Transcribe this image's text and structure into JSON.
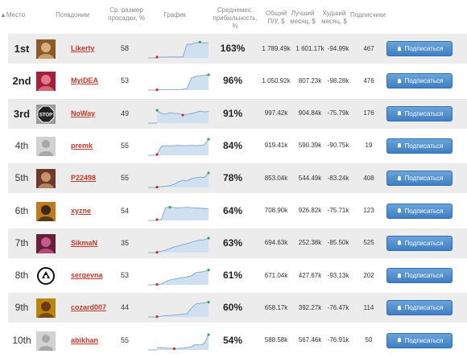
{
  "header": {
    "rank": "Место",
    "nickname": "Псевдоним",
    "avg_drawdown": "Ср. размер просадки, %",
    "graph": "График",
    "avg_profitability": "Среднемес. прибыльность, %",
    "total_pnl": "Общий П/У, $",
    "best_month": "Лучший месяц, $",
    "worst_month": "Худший месяц, $",
    "subscribers": "Подписчики"
  },
  "subscribe_label": "Подписаться",
  "colors": {
    "nick": "#c0392b",
    "button": "#4a88c8",
    "graph_fill": "#cfe0f1",
    "graph_line": "#6d9cc9",
    "dot_start": "#d9262b",
    "dot_end": "#2eae4a",
    "row_shade": "#ececec"
  },
  "rows": [
    {
      "rank": "1st",
      "nick": "Likerty",
      "drawdown": "58",
      "profit": "163%",
      "total": "1 789.49k",
      "best": "1 601.17k",
      "worst": "-94.99k",
      "subs": "467",
      "spark": [
        0.05,
        0.05,
        0.05,
        0.06,
        0.06,
        0.06,
        0.06,
        0.85,
        0.85,
        0.95,
        0.98,
        0.93,
        0.95
      ],
      "avatar": "avatar-photo-icon"
    },
    {
      "rank": "2nd",
      "nick": "MyiDEA",
      "drawdown": "53",
      "profit": "96%",
      "total": "1 050.92k",
      "best": "807.23k",
      "worst": "-98.28k",
      "subs": "476",
      "spark": [
        0.02,
        0.02,
        0.02,
        0.02,
        0.02,
        0.02,
        0.05,
        0.1,
        0.75,
        0.85,
        0.9,
        0.92,
        0.95
      ],
      "avatar": "avatar-photo-icon"
    },
    {
      "rank": "3rd",
      "nick": "NoWay",
      "drawdown": "49",
      "profit": "91%",
      "total": "997.42k",
      "best": "904.84k",
      "worst": "-75.79k",
      "subs": "176",
      "spark": [
        0.8,
        0.6,
        0.55,
        0.65,
        0.6,
        0.6,
        0.5,
        0.55,
        0.6,
        0.65,
        0.75,
        0.7,
        0.72
      ],
      "avatar": "stop-sign-icon"
    },
    {
      "rank": "4th",
      "nick": "premk",
      "drawdown": "55",
      "profit": "84%",
      "total": "919.41k",
      "best": "590.39k",
      "worst": "-90.75k",
      "subs": "19",
      "spark": [
        0.05,
        0.55,
        0.6,
        0.58,
        0.6,
        0.62,
        0.6,
        0.6,
        0.62,
        0.6,
        0.62,
        0.65,
        1.0
      ],
      "avatar": "default-user-icon"
    },
    {
      "rank": "5th",
      "nick": "P22498",
      "drawdown": "55",
      "profit": "78%",
      "total": "853.04k",
      "best": "544.49k",
      "worst": "-83.24k",
      "subs": "408",
      "spark": [
        0.02,
        0.05,
        0.08,
        0.12,
        0.2,
        0.35,
        0.45,
        0.4,
        0.55,
        0.6,
        0.65,
        0.62,
        0.9
      ],
      "avatar": "avatar-photo-icon"
    },
    {
      "rank": "6th",
      "nick": "xyzne",
      "drawdown": "54",
      "profit": "64%",
      "total": "708.90k",
      "best": "926.82k",
      "worst": "-75.71k",
      "subs": "123",
      "spark": [
        0.05,
        0.05,
        0.8,
        0.82,
        0.8,
        0.78,
        0.8,
        0.82,
        0.8,
        0.78,
        0.76,
        0.74,
        0.72
      ],
      "avatar": "avatar-photo-icon"
    },
    {
      "rank": "7th",
      "nick": "SikmaN",
      "drawdown": "35",
      "profit": "63%",
      "total": "694.63k",
      "best": "252.38k",
      "worst": "-85.50k",
      "subs": "525",
      "spark": [
        0.02,
        0.08,
        0.15,
        0.25,
        0.35,
        0.42,
        0.5,
        0.55,
        0.65,
        0.72,
        0.78,
        0.8,
        0.9
      ],
      "avatar": "avatar-photo-icon"
    },
    {
      "rank": "8th",
      "nick": "sergevna",
      "drawdown": "53",
      "profit": "61%",
      "total": "671.04k",
      "best": "427.67k",
      "worst": "-93.13k",
      "subs": "202",
      "spark": [
        0.02,
        0.05,
        0.2,
        0.3,
        0.35,
        0.4,
        0.45,
        0.5,
        0.55,
        0.75,
        0.8,
        0.82,
        0.92
      ],
      "avatar": "emblem-icon"
    },
    {
      "rank": "9th",
      "nick": "cozard007",
      "drawdown": "44",
      "profit": "60%",
      "total": "658.17k",
      "best": "392.27k",
      "worst": "-76.47k",
      "subs": "114",
      "spark": [
        0.02,
        0.05,
        0.08,
        0.1,
        0.12,
        0.15,
        0.18,
        0.2,
        0.55,
        0.8,
        0.85,
        0.88,
        0.92
      ],
      "avatar": "avatar-photo-icon"
    },
    {
      "rank": "10th",
      "nick": "abikhan",
      "drawdown": "55",
      "profit": "54%",
      "total": "588.58k",
      "best": "567.46k",
      "worst": "-76.91k",
      "subs": "50",
      "spark": [
        0.15,
        0.15,
        0.12,
        0.1,
        0.08,
        0.1,
        0.12,
        0.15,
        0.2,
        0.35,
        0.3,
        0.4,
        0.95
      ],
      "avatar": "default-user-icon"
    }
  ]
}
